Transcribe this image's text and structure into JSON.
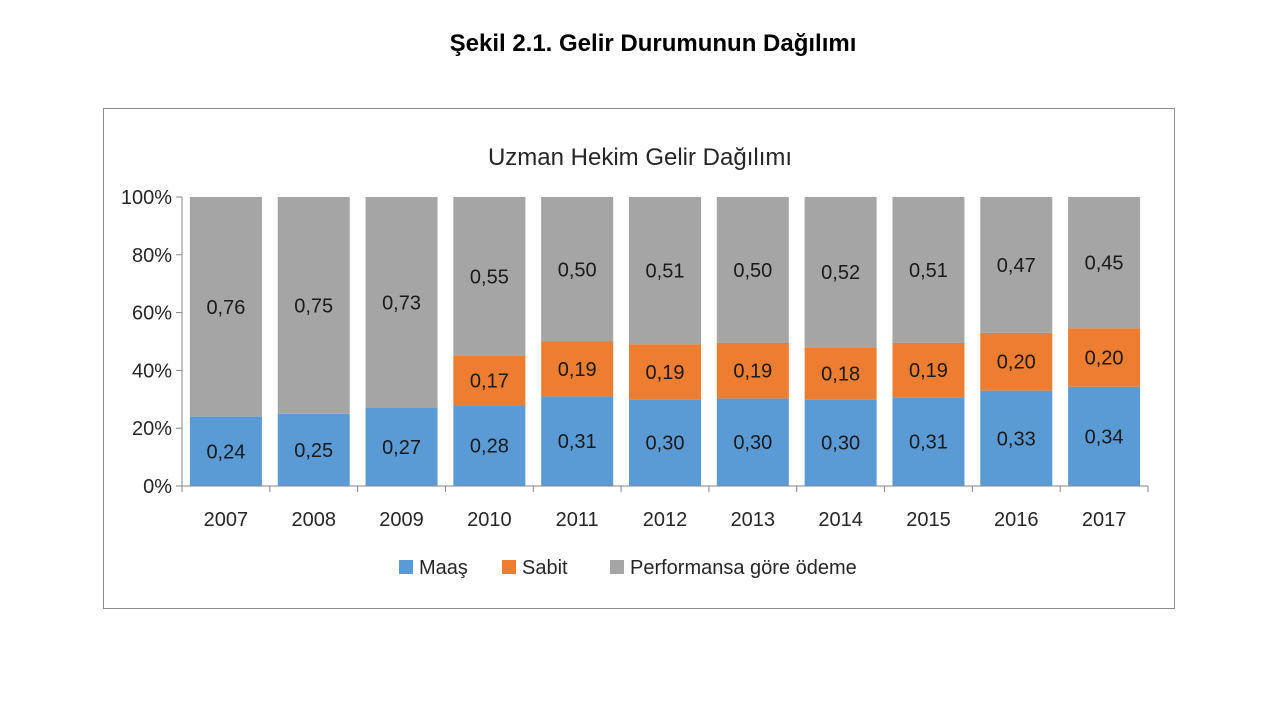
{
  "slide": {
    "title": "Şekil 2.1. Gelir Durumunun Dağılımı"
  },
  "colors": {
    "maas": "#5b9bd5",
    "sabit": "#ed7d31",
    "performans": "#a5a5a5"
  },
  "chart_data": {
    "type": "bar",
    "stacked": "percent",
    "title": "Uzman Hekim Gelir Dağılımı",
    "xlabel": "",
    "ylabel": "",
    "ylim": [
      0,
      100
    ],
    "y_ticks": [
      "0%",
      "20%",
      "40%",
      "60%",
      "80%",
      "100%"
    ],
    "categories": [
      "2007",
      "2008",
      "2009",
      "2010",
      "2011",
      "2012",
      "2013",
      "2014",
      "2015",
      "2016",
      "2017"
    ],
    "series": [
      {
        "name": "Maaş",
        "color": "#5b9bd5",
        "values": [
          0.24,
          0.25,
          0.27,
          0.28,
          0.31,
          0.3,
          0.3,
          0.3,
          0.31,
          0.33,
          0.34
        ],
        "labels": [
          "0,24",
          "0,25",
          "0,27",
          "0,28",
          "0,31",
          "0,30",
          "0,30",
          "0,30",
          "0,31",
          "0,33",
          "0,34"
        ]
      },
      {
        "name": "Sabit",
        "color": "#ed7d31",
        "values": [
          0,
          0,
          0,
          0.17,
          0.19,
          0.19,
          0.19,
          0.18,
          0.19,
          0.2,
          0.2
        ],
        "labels": [
          "",
          "",
          "",
          "0,17",
          "0,19",
          "0,19",
          "0,19",
          "0,18",
          "0,19",
          "0,20",
          "0,20"
        ]
      },
      {
        "name": "Performansa göre ödeme",
        "color": "#a5a5a5",
        "values": [
          0.76,
          0.75,
          0.73,
          0.55,
          0.5,
          0.51,
          0.5,
          0.52,
          0.51,
          0.47,
          0.45
        ],
        "labels": [
          "0,76",
          "0,75",
          "0,73",
          "0,55",
          "0,50",
          "0,51",
          "0,50",
          "0,52",
          "0,51",
          "0,47",
          "0,45"
        ]
      }
    ],
    "grid": false,
    "legend_position": "bottom"
  }
}
